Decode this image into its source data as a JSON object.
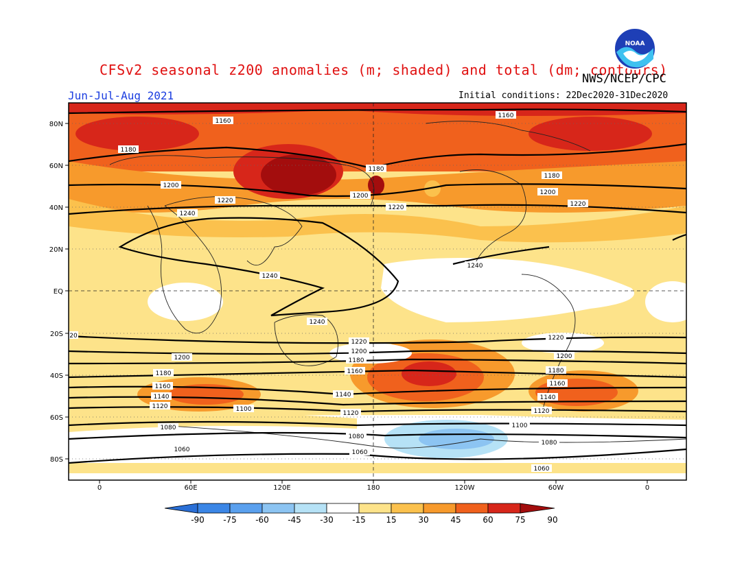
{
  "header": {
    "title": "CFSv2 seasonal z200 anomalies (m; shaded) and total (dm; contours)",
    "org": "NWS/NCEP/CPC",
    "season": "Jun-Jul-Aug 2021",
    "initial_conditions": "Initial conditions: 22Dec2020-31Dec2020",
    "logo_text": "NOAA"
  },
  "map": {
    "lat_labels": [
      "80N",
      "60N",
      "40N",
      "20N",
      "EQ",
      "20S",
      "40S",
      "60S",
      "80S"
    ],
    "lon_labels": [
      "0",
      "60E",
      "120E",
      "180",
      "120W",
      "60W",
      "0"
    ],
    "contour_labels": [
      "1160",
      "1180",
      "1200",
      "1220",
      "1240",
      "1240",
      "1240",
      "1240",
      "1220",
      "1200",
      "1180",
      "1160",
      "1140",
      "1120",
      "1100",
      "1080",
      "1060",
      "1180",
      "1200",
      "1220",
      "1160",
      "1180",
      "1200",
      "1220",
      "1200",
      "1180",
      "1160",
      "1140",
      "1120",
      "1100",
      "1080",
      "1060",
      "1160",
      "1180",
      "1200",
      "1220",
      "1200",
      "1180",
      "1160",
      "1140",
      "1120",
      "1100",
      "1080",
      "1060",
      "20"
    ]
  },
  "colorbar": {
    "ticks": [
      "-90",
      "-75",
      "-60",
      "-45",
      "-30",
      "-15",
      "15",
      "30",
      "45",
      "60",
      "75",
      "90"
    ],
    "colors": [
      "#2a6fd6",
      "#3b86e6",
      "#5aa0ee",
      "#8cc4f2",
      "#b6e2f6",
      "#ffffff",
      "#fde38a",
      "#fbc14d",
      "#f79a2c",
      "#f0611d",
      "#d7261a",
      "#a30d0d"
    ]
  },
  "colors": {
    "title": "#e01010",
    "season": "#1a3de0",
    "frame": "#000000"
  }
}
